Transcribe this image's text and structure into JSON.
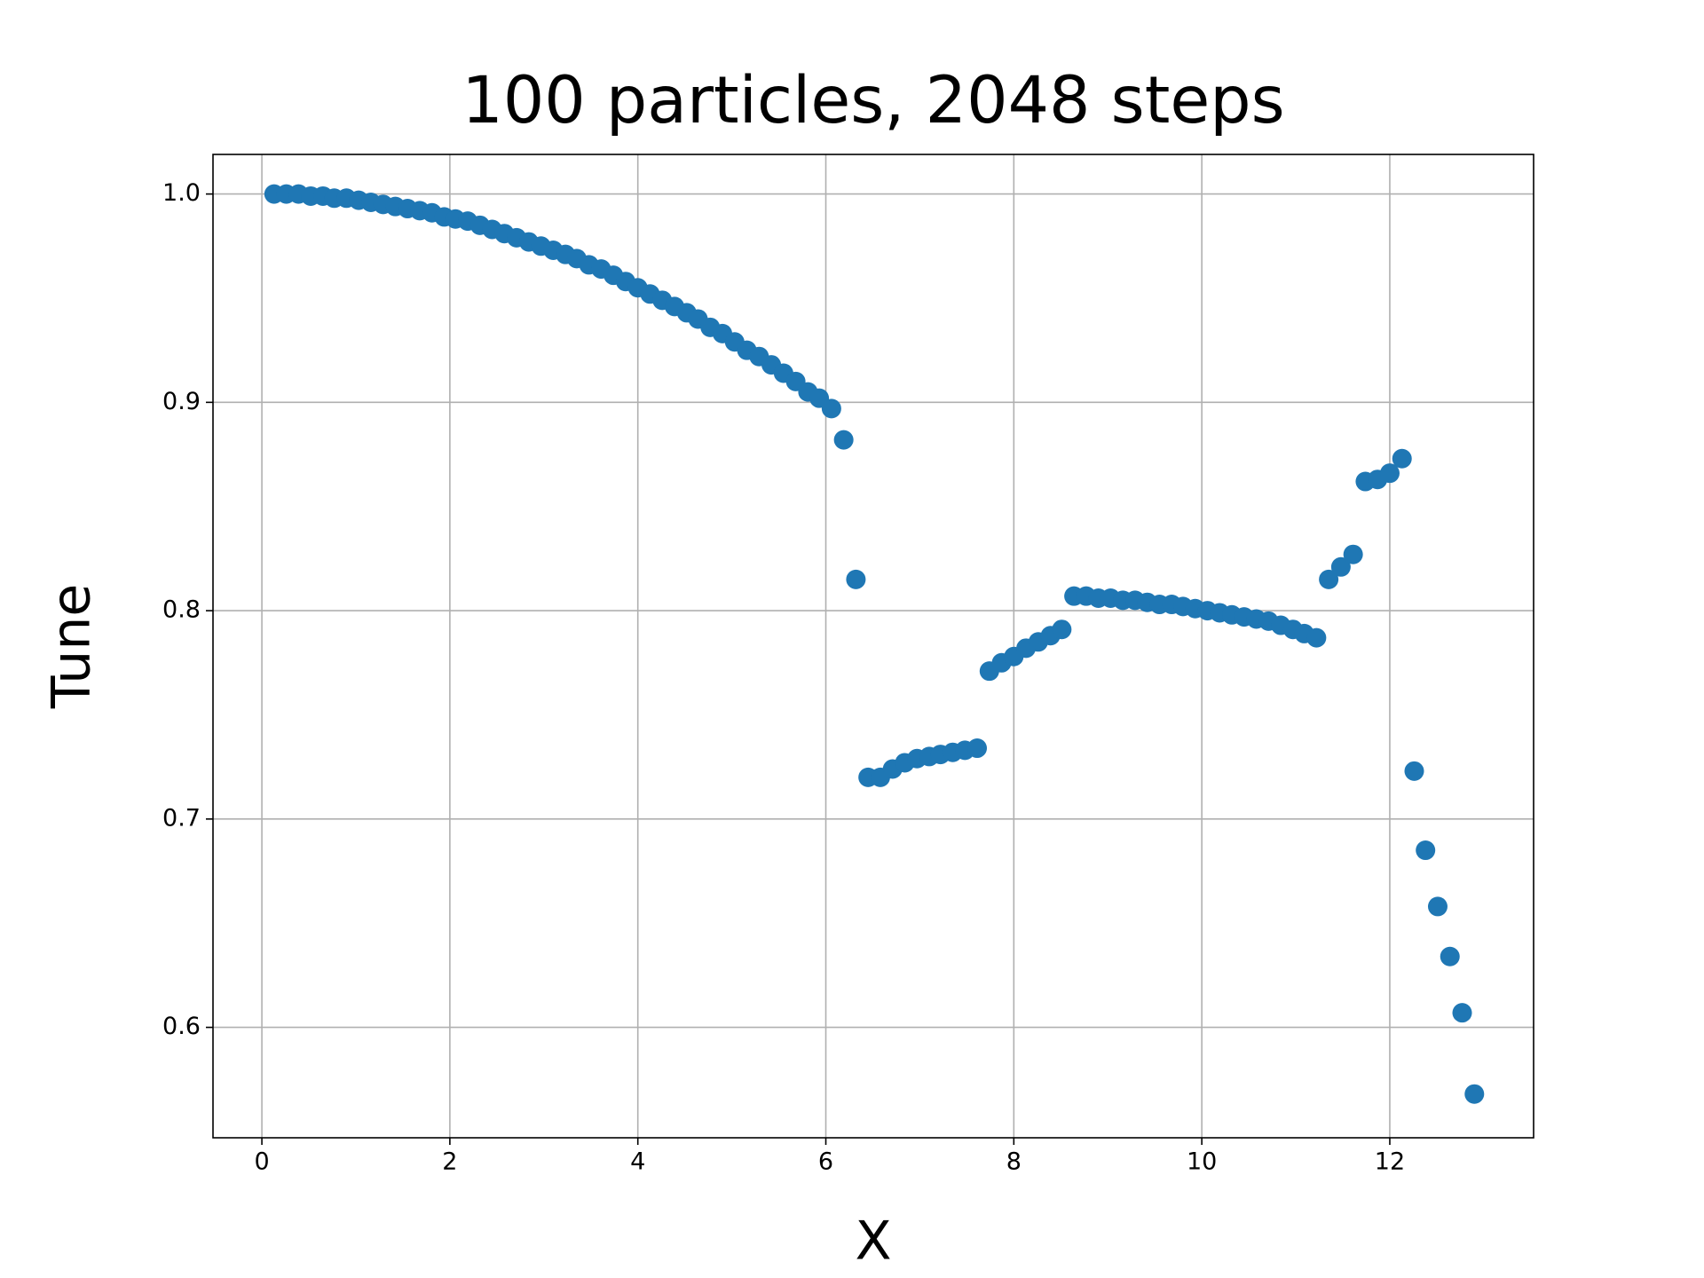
{
  "chart_data": {
    "type": "scatter",
    "title": "100 particles, 2048 steps",
    "xlabel": "X",
    "ylabel": "Tune",
    "color": "#1f77b4",
    "grid": true,
    "xlim": [
      -0.52,
      13.53
    ],
    "ylim": [
      0.547,
      1.019
    ],
    "xticks": [
      0,
      2,
      4,
      6,
      8,
      10,
      12
    ],
    "yticks": [
      0.6,
      0.7,
      0.8,
      0.9,
      {
        "value": 1,
        "label": "1.0"
      }
    ],
    "x": [
      0.13,
      0.26,
      0.39,
      0.52,
      0.65,
      0.77,
      0.9,
      1.03,
      1.16,
      1.29,
      1.42,
      1.55,
      1.68,
      1.81,
      1.94,
      2.06,
      2.19,
      2.32,
      2.45,
      2.58,
      2.71,
      2.84,
      2.97,
      3.1,
      3.23,
      3.35,
      3.48,
      3.61,
      3.74,
      3.87,
      4.0,
      4.13,
      4.26,
      4.39,
      4.52,
      4.64,
      4.77,
      4.9,
      5.03,
      5.16,
      5.29,
      5.42,
      5.55,
      5.68,
      5.81,
      5.93,
      6.06,
      6.19,
      6.32,
      6.45,
      6.58,
      6.71,
      6.84,
      6.97,
      7.1,
      7.22,
      7.35,
      7.48,
      7.61,
      7.74,
      7.87,
      8.0,
      8.13,
      8.26,
      8.39,
      8.51,
      8.64,
      8.77,
      8.9,
      9.03,
      9.16,
      9.29,
      9.42,
      9.55,
      9.68,
      9.8,
      9.93,
      10.06,
      10.19,
      10.32,
      10.45,
      10.58,
      10.71,
      10.84,
      10.97,
      11.09,
      11.22,
      11.35,
      11.48,
      11.61,
      11.74,
      11.87,
      12.0,
      12.13,
      12.26,
      12.38,
      12.51,
      12.64,
      12.77,
      12.9
    ],
    "values": [
      1.0,
      1.0,
      1.0,
      0.999,
      0.999,
      0.998,
      0.998,
      0.997,
      0.996,
      0.995,
      0.994,
      0.993,
      0.992,
      0.991,
      0.989,
      0.988,
      0.987,
      0.985,
      0.983,
      0.981,
      0.979,
      0.977,
      0.975,
      0.973,
      0.971,
      0.969,
      0.966,
      0.964,
      0.961,
      0.958,
      0.955,
      0.952,
      0.949,
      0.946,
      0.943,
      0.94,
      0.936,
      0.933,
      0.929,
      0.925,
      0.922,
      0.918,
      0.914,
      0.91,
      0.905,
      0.902,
      0.897,
      0.882,
      0.815,
      0.72,
      0.72,
      0.724,
      0.727,
      0.729,
      0.73,
      0.731,
      0.732,
      0.733,
      0.734,
      0.771,
      0.775,
      0.778,
      0.782,
      0.785,
      0.788,
      0.791,
      0.807,
      0.807,
      0.806,
      0.806,
      0.805,
      0.805,
      0.804,
      0.803,
      0.803,
      0.802,
      0.801,
      0.8,
      0.799,
      0.798,
      0.797,
      0.796,
      0.795,
      0.793,
      0.791,
      0.789,
      0.787,
      0.815,
      0.821,
      0.827,
      0.862,
      0.863,
      0.866,
      0.873,
      0.723,
      0.685,
      0.658,
      0.634,
      0.607,
      0.568
    ]
  }
}
